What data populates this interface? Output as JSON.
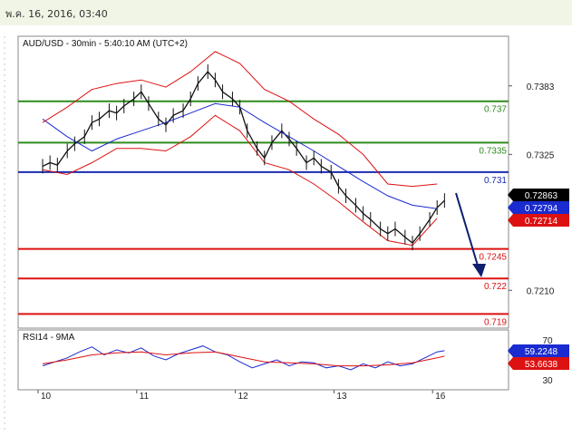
{
  "date_line": "พ.ค. 16, 2016, 03:40",
  "chart_data": [
    {
      "type": "line",
      "title": "AUD/USD - 30min - 5:40:10 AM (UTC+2)",
      "ylim": [
        0.7178,
        0.7425
      ],
      "y_ticks": [
        "0.7383",
        "0.7325",
        "0.7210"
      ],
      "x_ticks": [
        "10",
        "11",
        "12",
        "13",
        "16"
      ],
      "levels": [
        {
          "label": "0.737",
          "value": 0.737,
          "color": "#2e8b1e"
        },
        {
          "label": "0.7335",
          "value": 0.7335,
          "color": "#2e8b1e"
        },
        {
          "label": "0.731",
          "value": 0.731,
          "color": "#1a2bb0"
        },
        {
          "label": "0.7245",
          "value": 0.7245,
          "color": "#dd1111"
        },
        {
          "label": "0.722",
          "value": 0.722,
          "color": "#dd1111"
        },
        {
          "label": "0.719",
          "value": 0.719,
          "color": "#dd1111"
        }
      ],
      "price_tags": [
        {
          "label": "0.72863",
          "value": 0.72863,
          "color": "#000000"
        },
        {
          "label": "0.72794",
          "value": 0.72794,
          "color": "#1a2bd0"
        },
        {
          "label": "0.72714",
          "value": 0.72714,
          "color": "#dd1111"
        }
      ],
      "series": [
        {
          "values": [
            [
              0,
              0.7315
            ],
            [
              0.3,
              0.7318
            ],
            [
              0.6,
              0.7316
            ],
            [
              1,
              0.7328
            ],
            [
              1.3,
              0.7334
            ],
            [
              1.7,
              0.734
            ],
            [
              2,
              0.7352
            ],
            [
              2.3,
              0.7355
            ],
            [
              2.7,
              0.7362
            ],
            [
              3,
              0.736
            ],
            [
              3.3,
              0.7366
            ],
            [
              3.7,
              0.7372
            ],
            [
              4,
              0.7378
            ],
            [
              4.3,
              0.7368
            ],
            [
              4.7,
              0.7355
            ],
            [
              5,
              0.735
            ],
            [
              5.3,
              0.7358
            ],
            [
              5.7,
              0.7362
            ],
            [
              6,
              0.7372
            ],
            [
              6.3,
              0.7385
            ],
            [
              6.7,
              0.7395
            ],
            [
              7,
              0.7388
            ],
            [
              7.3,
              0.7378
            ],
            [
              7.7,
              0.7372
            ],
            [
              8,
              0.7365
            ],
            [
              8.3,
              0.7345
            ],
            [
              8.7,
              0.733
            ],
            [
              9,
              0.7322
            ],
            [
              9.3,
              0.7335
            ],
            [
              9.7,
              0.7345
            ],
            [
              10,
              0.7338
            ],
            [
              10.3,
              0.733
            ],
            [
              10.7,
              0.7318
            ],
            [
              11,
              0.7322
            ],
            [
              11.3,
              0.7315
            ],
            [
              11.7,
              0.731
            ],
            [
              12,
              0.7298
            ],
            [
              12.3,
              0.729
            ],
            [
              12.7,
              0.7282
            ],
            [
              13,
              0.7275
            ],
            [
              13.3,
              0.727
            ],
            [
              13.7,
              0.7262
            ],
            [
              14,
              0.7258
            ],
            [
              14.3,
              0.7262
            ],
            [
              14.7,
              0.7255
            ],
            [
              15,
              0.725
            ],
            [
              15.3,
              0.7258
            ],
            [
              15.7,
              0.727
            ],
            [
              16,
              0.728
            ],
            [
              16.3,
              0.7286
            ]
          ]
        },
        {
          "values": [
            [
              0,
              0.7355
            ],
            [
              1,
              0.734
            ],
            [
              2,
              0.7328
            ],
            [
              3,
              0.7338
            ],
            [
              4,
              0.7345
            ],
            [
              5,
              0.7352
            ],
            [
              6,
              0.736
            ],
            [
              7,
              0.7368
            ],
            [
              8,
              0.7365
            ],
            [
              9,
              0.7352
            ],
            [
              10,
              0.734
            ],
            [
              11,
              0.7328
            ],
            [
              12,
              0.7315
            ],
            [
              13,
              0.7302
            ],
            [
              14,
              0.729
            ],
            [
              15,
              0.7282
            ],
            [
              16,
              0.7279
            ]
          ]
        },
        {
          "values": [
            [
              0,
              0.7352
            ],
            [
              1,
              0.7365
            ],
            [
              2,
              0.738
            ],
            [
              3,
              0.7385
            ],
            [
              4,
              0.7388
            ],
            [
              5,
              0.7382
            ],
            [
              6,
              0.7395
            ],
            [
              7,
              0.7412
            ],
            [
              8,
              0.7402
            ],
            [
              9,
              0.738
            ],
            [
              10,
              0.737
            ],
            [
              11,
              0.7355
            ],
            [
              12,
              0.7342
            ],
            [
              13,
              0.7325
            ],
            [
              14,
              0.73
            ],
            [
              15,
              0.7298
            ],
            [
              16,
              0.73
            ]
          ]
        },
        {
          "values": [
            [
              0,
              0.7312
            ],
            [
              1,
              0.7308
            ],
            [
              2,
              0.7318
            ],
            [
              3,
              0.733
            ],
            [
              4,
              0.733
            ],
            [
              5,
              0.7328
            ],
            [
              6,
              0.734
            ],
            [
              7,
              0.7358
            ],
            [
              8,
              0.7345
            ],
            [
              9,
              0.7318
            ],
            [
              10,
              0.7312
            ],
            [
              11,
              0.73
            ],
            [
              12,
              0.7285
            ],
            [
              13,
              0.7268
            ],
            [
              14,
              0.7252
            ],
            [
              15,
              0.7248
            ],
            [
              16,
              0.7271
            ]
          ]
        }
      ]
    },
    {
      "type": "line",
      "title": "RSI14 - 9MA",
      "ylim": [
        20,
        80
      ],
      "y_ticks": [
        "70",
        "30"
      ],
      "value_tags": [
        {
          "label": "59.2248",
          "value": 59.2248,
          "color": "#1a2bd0"
        },
        {
          "label": "53.6638",
          "value": 53.6638,
          "color": "#dd1111"
        }
      ],
      "series": [
        {
          "values": [
            [
              0,
              44
            ],
            [
              0.5,
              48
            ],
            [
              1,
              52
            ],
            [
              1.5,
              58
            ],
            [
              2,
              63
            ],
            [
              2.5,
              55
            ],
            [
              3,
              60
            ],
            [
              3.5,
              57
            ],
            [
              4,
              62
            ],
            [
              4.5,
              54
            ],
            [
              5,
              50
            ],
            [
              5.5,
              56
            ],
            [
              6,
              60
            ],
            [
              6.5,
              64
            ],
            [
              7,
              58
            ],
            [
              7.5,
              55
            ],
            [
              8,
              48
            ],
            [
              8.5,
              42
            ],
            [
              9,
              46
            ],
            [
              9.5,
              50
            ],
            [
              10,
              44
            ],
            [
              10.5,
              48
            ],
            [
              11,
              47
            ],
            [
              11.5,
              42
            ],
            [
              12,
              44
            ],
            [
              12.5,
              40
            ],
            [
              13,
              46
            ],
            [
              13.5,
              42
            ],
            [
              14,
              48
            ],
            [
              14.5,
              44
            ],
            [
              15,
              46
            ],
            [
              15.5,
              52
            ],
            [
              16,
              58
            ],
            [
              16.3,
              59.2
            ]
          ]
        },
        {
          "values": [
            [
              0,
              46
            ],
            [
              1,
              50
            ],
            [
              2,
              55
            ],
            [
              3,
              57
            ],
            [
              4,
              58
            ],
            [
              5,
              55
            ],
            [
              6,
              57
            ],
            [
              7,
              58
            ],
            [
              8,
              53
            ],
            [
              9,
              48
            ],
            [
              10,
              47
            ],
            [
              11,
              46
            ],
            [
              12,
              44
            ],
            [
              13,
              44
            ],
            [
              14,
              45
            ],
            [
              15,
              47
            ],
            [
              16,
              52
            ],
            [
              16.3,
              53.7
            ]
          ]
        }
      ]
    }
  ]
}
